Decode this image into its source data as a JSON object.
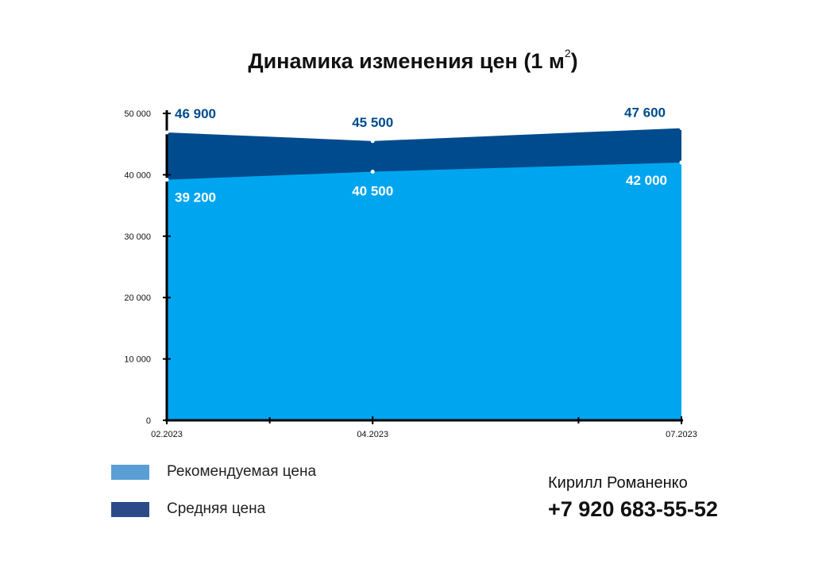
{
  "chart_data": {
    "type": "area",
    "title": "Динамика изменения цен (1 м",
    "title_superscript": "2",
    "title_suffix": ")",
    "x": [
      "02.2023",
      "04.2023",
      "07.2023"
    ],
    "x_positions": [
      0,
      2,
      5
    ],
    "minor_tick_positions": [
      1,
      4
    ],
    "x_range": [
      0,
      5
    ],
    "ylim": [
      0,
      50000
    ],
    "y_ticks": [
      0,
      10000,
      20000,
      30000,
      40000,
      50000
    ],
    "y_tick_labels": [
      "0",
      "10 000",
      "20 000",
      "30 000",
      "40 000",
      "50 000"
    ],
    "grid": false,
    "stacked": false,
    "series": [
      {
        "name": "Средняя цена",
        "values": [
          46900,
          45500,
          47600
        ],
        "labels": [
          "46 900",
          "45 500",
          "47 600"
        ],
        "fill": "#004b8d",
        "label_color": "#004b8d"
      },
      {
        "name": "Рекомендуемая цена",
        "values": [
          39200,
          40500,
          42000
        ],
        "labels": [
          "39 200",
          "40 500",
          "42 000"
        ],
        "fill": "#00a5ef",
        "label_color": "#ffffff"
      }
    ]
  },
  "legend": {
    "placement": "bottom-left",
    "items": [
      {
        "label": "Рекомендуемая цена",
        "color": "#5a9fd4"
      },
      {
        "label": "Средняя цена",
        "color": "#2b4a8a"
      }
    ]
  },
  "contact": {
    "name": "Кирилл Романенко",
    "phone": "+7 920 683-55-52"
  }
}
